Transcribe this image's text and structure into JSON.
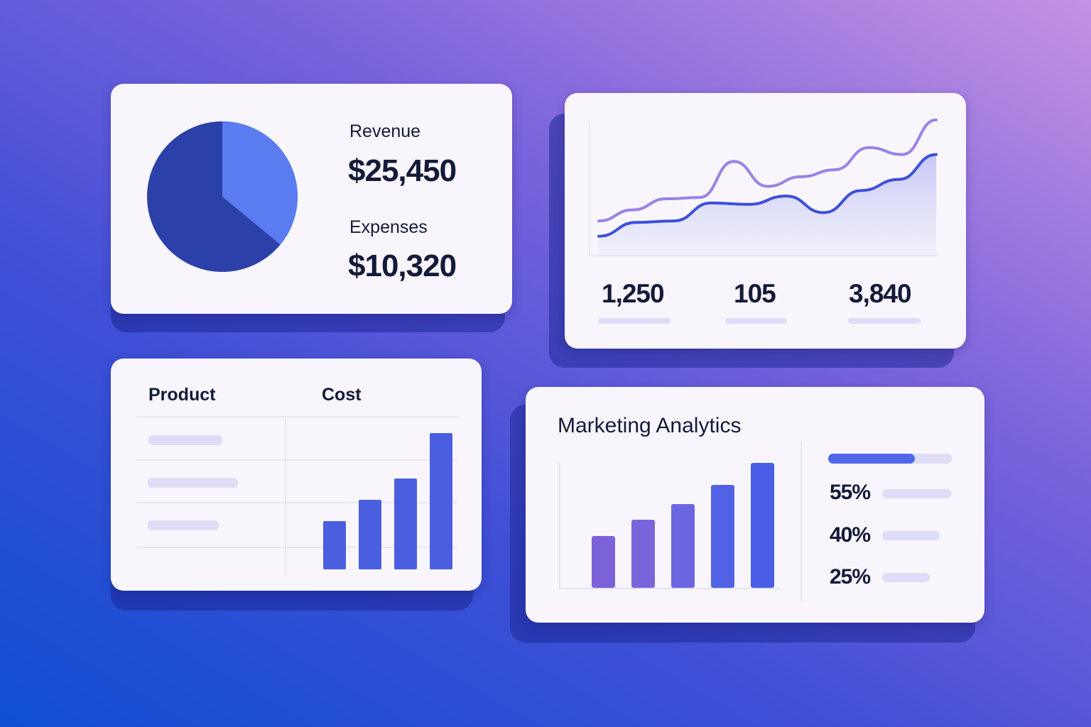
{
  "colors": {
    "accent": "#4f67e8",
    "pie_dark": "#2b40a8",
    "pie_light": "#5b7cf0",
    "line_purple": "#9a82e6",
    "line_blue": "#3c50db",
    "pill": "#dedcf6"
  },
  "finance_card": {
    "revenue_label": "Revenue",
    "revenue_value": "$25,450",
    "expenses_label": "Expenses",
    "expenses_value": "$10,320"
  },
  "trend_card": {
    "stats": [
      "1,250",
      "105",
      "3,840"
    ]
  },
  "product_card": {
    "col_product": "Product",
    "col_cost": "Cost"
  },
  "marketing_card": {
    "title": "Marketing Analytics",
    "progress_fraction": 0.7,
    "percents": [
      "55%",
      "40%",
      "25%"
    ]
  },
  "chart_data": [
    {
      "type": "pie",
      "values": [
        36,
        64
      ],
      "grid": false
    },
    {
      "type": "line",
      "series": [
        {
          "values": [
            25,
            33,
            41,
            42,
            68,
            50,
            57,
            62,
            78,
            73,
            98
          ]
        },
        {
          "values": [
            14,
            24,
            25,
            38,
            37,
            43,
            31,
            47,
            55,
            73
          ],
          "area": true
        }
      ],
      "grid": false
    },
    {
      "type": "bar",
      "values": [
        68,
        98,
        128,
        192
      ],
      "grid": true
    },
    {
      "type": "bar",
      "values": [
        73,
        96,
        118,
        145,
        176
      ],
      "grid": false
    }
  ]
}
